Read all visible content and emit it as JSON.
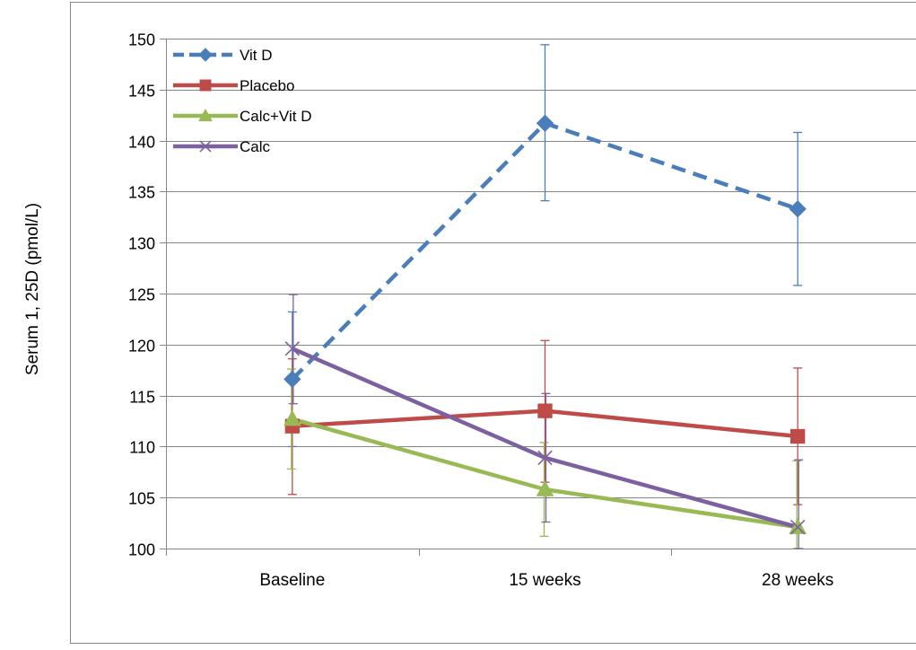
{
  "chart_data": {
    "type": "line",
    "title": "",
    "xlabel": "",
    "ylabel": "Serum 1, 25D (pmol/L)",
    "categories": [
      "Baseline",
      "15 weeks",
      "28 weeks"
    ],
    "ylim": [
      100,
      150
    ],
    "yticks": [
      100,
      105,
      110,
      115,
      120,
      125,
      130,
      135,
      140,
      145,
      150
    ],
    "grid": true,
    "legend_position": "top-left",
    "series": [
      {
        "name": "Vit D",
        "values": [
          116.6,
          141.7,
          133.3
        ],
        "error_low": [
          110.0,
          134.1,
          125.8
        ],
        "error_high": [
          123.2,
          149.4,
          140.8
        ],
        "color": "#4A7EBB",
        "marker": "diamond",
        "dashed": true
      },
      {
        "name": "Placebo",
        "values": [
          112.0,
          113.5,
          111.0
        ],
        "error_low": [
          105.3,
          106.5,
          104.3
        ],
        "error_high": [
          118.6,
          120.4,
          117.7
        ],
        "color": "#BE4B48",
        "marker": "square",
        "dashed": false
      },
      {
        "name": "Calc+Vit D",
        "values": [
          112.7,
          105.8,
          102.1
        ],
        "error_low": [
          107.8,
          101.2,
          100.0
        ],
        "error_high": [
          117.6,
          110.4,
          108.6
        ],
        "color": "#98B954",
        "marker": "triangle",
        "dashed": false
      },
      {
        "name": "Calc",
        "values": [
          119.6,
          108.9,
          102.1
        ],
        "error_low": [
          114.2,
          102.6,
          100.0
        ],
        "error_high": [
          124.9,
          115.2,
          108.7
        ],
        "color": "#7D60A0",
        "marker": "x",
        "dashed": false
      }
    ]
  }
}
